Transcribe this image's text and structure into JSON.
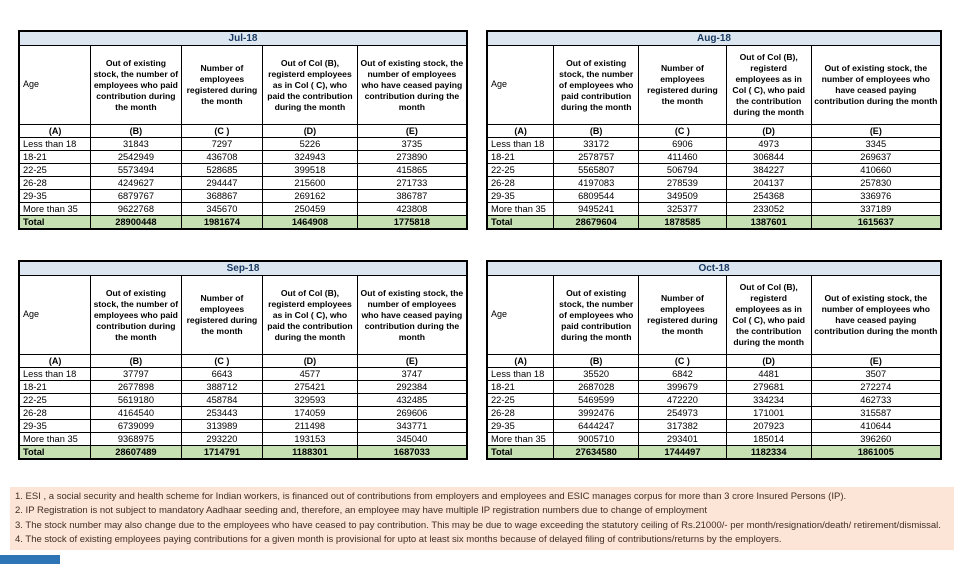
{
  "columns": {
    "age_label": "Age",
    "col_b": "Out of existing stock, the number of employees who paid contribution during the month",
    "col_c": "Number of employees registered during the month",
    "col_d": "Out of Col (B), registerd employees as in Col ( C), who paid the contribution during the month",
    "col_e": "Out of existing stock, the number of employees who have ceased paying contribution during the month",
    "letters": [
      "(A)",
      "(B)",
      "(C )",
      "(D)",
      "(E)"
    ]
  },
  "tables": [
    {
      "month": "Jul-18",
      "rows": [
        [
          "Less than 18",
          "31843",
          "7297",
          "5226",
          "3735"
        ],
        [
          "18-21",
          "2542949",
          "436708",
          "324943",
          "273890"
        ],
        [
          "22-25",
          "5573494",
          "528685",
          "399518",
          "415865"
        ],
        [
          "26-28",
          "4249627",
          "294447",
          "215600",
          "271733"
        ],
        [
          "29-35",
          "6879767",
          "368867",
          "269162",
          "386787"
        ],
        [
          "More than 35",
          "9622768",
          "345670",
          "250459",
          "423808"
        ]
      ],
      "total": [
        "Total",
        "28900448",
        "1981674",
        "1464908",
        "1775818"
      ]
    },
    {
      "month": "Aug-18",
      "rows": [
        [
          "Less than 18",
          "33172",
          "6906",
          "4973",
          "3345"
        ],
        [
          "18-21",
          "2578757",
          "411460",
          "306844",
          "269637"
        ],
        [
          "22-25",
          "5565807",
          "506794",
          "384227",
          "410660"
        ],
        [
          "26-28",
          "4197083",
          "278539",
          "204137",
          "257830"
        ],
        [
          "29-35",
          "6809544",
          "349509",
          "254368",
          "336976"
        ],
        [
          "More than 35",
          "9495241",
          "325377",
          "233052",
          "337189"
        ]
      ],
      "total": [
        "Total",
        "28679604",
        "1878585",
        "1387601",
        "1615637"
      ]
    },
    {
      "month": "Sep-18",
      "rows": [
        [
          "Less than 18",
          "37797",
          "6643",
          "4577",
          "3747"
        ],
        [
          "18-21",
          "2677898",
          "388712",
          "275421",
          "292384"
        ],
        [
          "22-25",
          "5619180",
          "458784",
          "329593",
          "432485"
        ],
        [
          "26-28",
          "4164540",
          "253443",
          "174059",
          "269606"
        ],
        [
          "29-35",
          "6739099",
          "313989",
          "211498",
          "343771"
        ],
        [
          "More than 35",
          "9368975",
          "293220",
          "193153",
          "345040"
        ]
      ],
      "total": [
        "Total",
        "28607489",
        "1714791",
        "1188301",
        "1687033"
      ]
    },
    {
      "month": "Oct-18",
      "rows": [
        [
          "Less than 18",
          "35520",
          "6842",
          "4481",
          "3507"
        ],
        [
          "18-21",
          "2687028",
          "399679",
          "279681",
          "272274"
        ],
        [
          "22-25",
          "5469599",
          "472220",
          "334234",
          "462733"
        ],
        [
          "26-28",
          "3992476",
          "254973",
          "171001",
          "315587"
        ],
        [
          "29-35",
          "6444247",
          "317382",
          "207923",
          "410644"
        ],
        [
          "More than 35",
          "9005710",
          "293401",
          "185014",
          "396260"
        ]
      ],
      "total": [
        "Total",
        "27634580",
        "1744497",
        "1182334",
        "1861005"
      ]
    }
  ],
  "footnotes": [
    "1. ESI , a social security and health scheme for Indian workers, is financed out of contributions from employers and employees and ESIC manages corpus for more than 3 crore Insured Persons (IP).",
    "2. IP Registration is not subject to mandatory Aadhaar seeding and, therefore, an employee may have multiple IP registration numbers due to change of employment",
    "3. The stock number may also change due to the employees who have ceased to pay contribution. This may be due to wage exceeding the statutory ceiling of Rs.21000/- per month/resignation/death/ retirement/dismissal.",
    "4. The stock of existing employees paying contributions for a given month is provisional for upto at least six months because of delayed filing of contributions/returns by the employers."
  ],
  "colors": {
    "month_header_bg": "#DCE6F1",
    "month_header_text": "#17375E",
    "total_row_bg": "#C6E0B4",
    "footnote_bg": "#FCE4D6",
    "border": "#000000",
    "accent_bar": "#2E75B6"
  }
}
